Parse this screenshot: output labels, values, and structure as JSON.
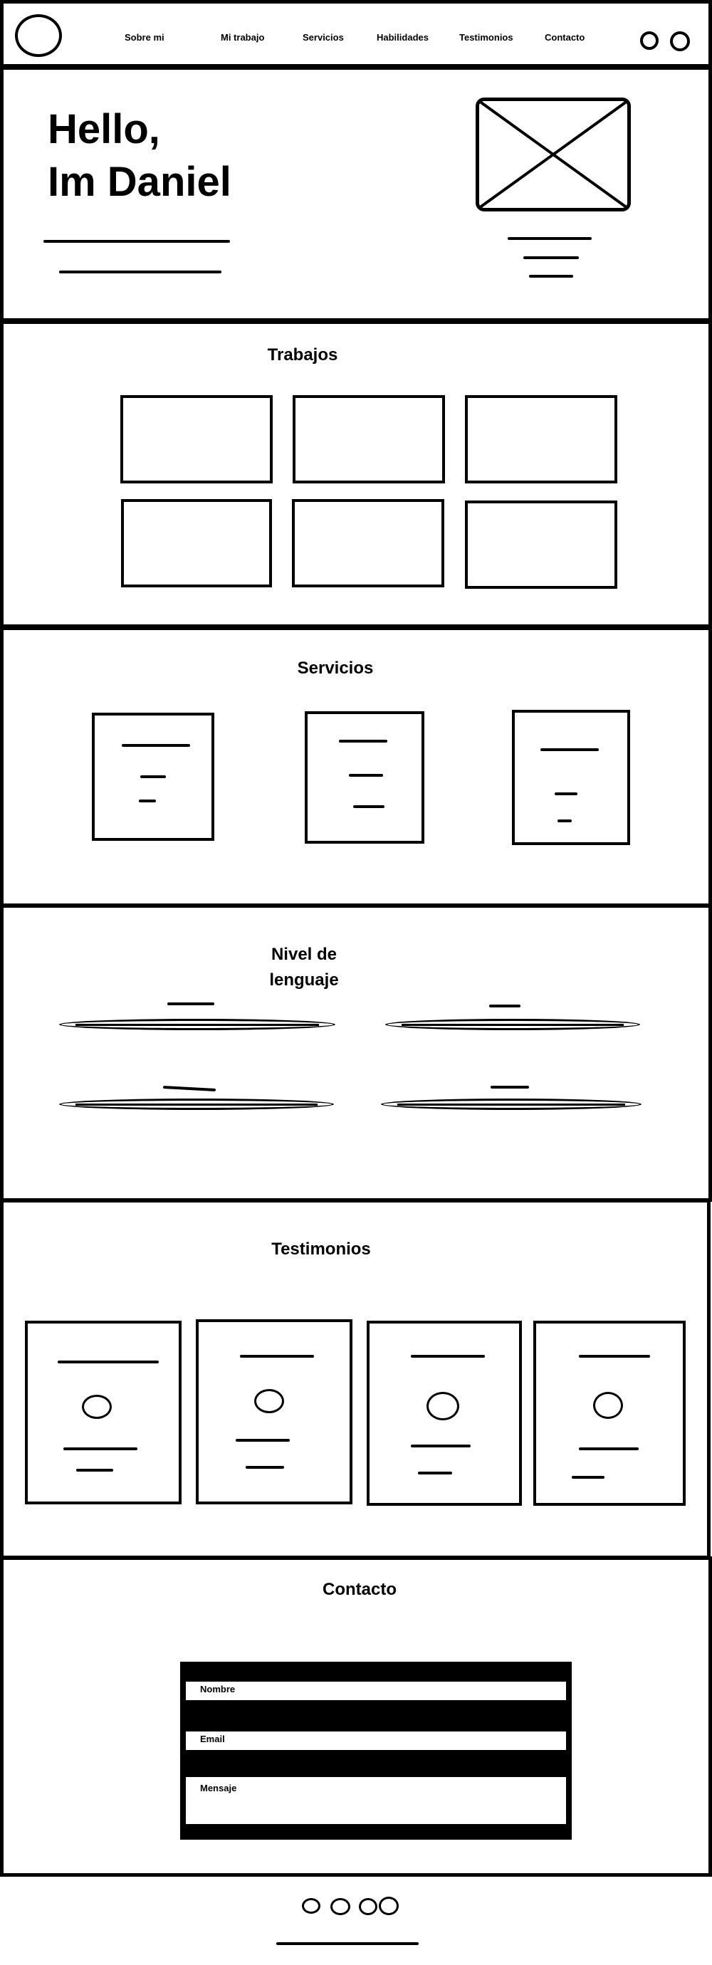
{
  "nav": {
    "items": [
      "Sobre mi",
      "Mi trabajo",
      "Servicios",
      "Habilidades",
      "Testimonios",
      "Contacto"
    ]
  },
  "hero": {
    "line1": "Hello,",
    "line2": "Im Daniel"
  },
  "works": {
    "title": "Trabajos"
  },
  "services": {
    "title": "Servicios"
  },
  "skills": {
    "title_line1": "Nivel de",
    "title_line2": "lenguaje"
  },
  "testimonials": {
    "title": "Testimonios"
  },
  "contact": {
    "title": "Contacto",
    "name_label": "Nombre",
    "email_label": "Email",
    "message_label": "Mensaje"
  }
}
